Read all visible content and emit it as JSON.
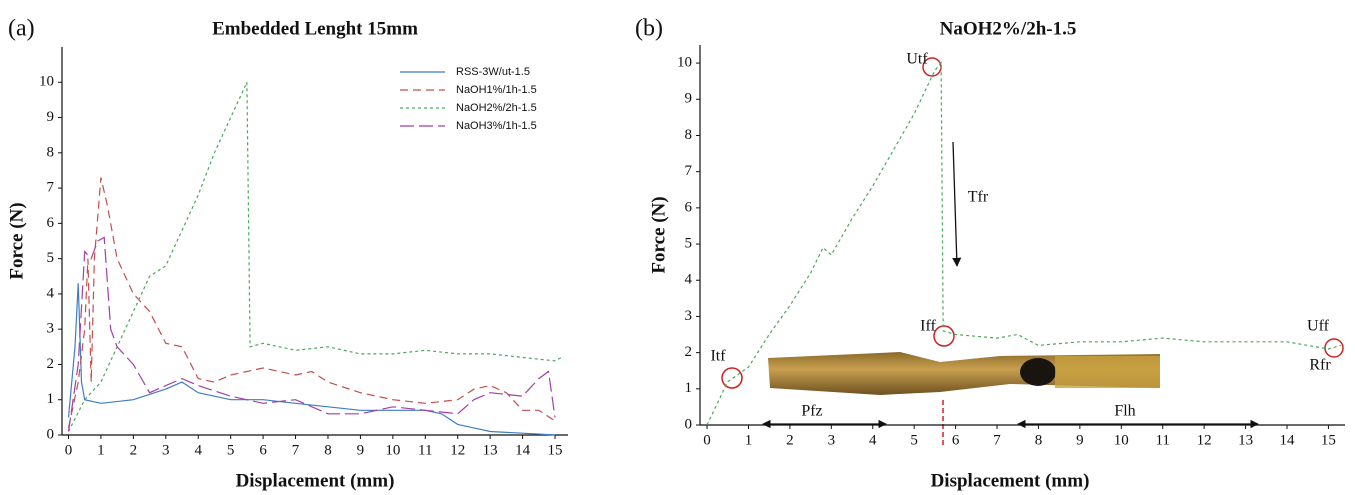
{
  "chart_data": [
    {
      "type": "line",
      "panel_label": "(a)",
      "title": "Embedded Lenght 15mm",
      "x_label": "Displacement (mm)",
      "y_label": "Force (N)",
      "xlim": [
        -0.2,
        15.4
      ],
      "ylim": [
        0,
        11
      ],
      "xticks": [
        0,
        1,
        2,
        3,
        4,
        5,
        6,
        7,
        8,
        9,
        10,
        11,
        12,
        13,
        14,
        15
      ],
      "yticks": [
        0,
        1,
        2,
        3,
        4,
        5,
        6,
        7,
        8,
        9,
        10
      ],
      "legend": "upper right",
      "series": [
        {
          "name": "RSS-3W/ut-1.5",
          "color": "#3f7cc4",
          "dash": "solid",
          "x": [
            0,
            0.2,
            0.3,
            0.4,
            0.5,
            1,
            2,
            3,
            3.5,
            4,
            5,
            6,
            7,
            8,
            9,
            10,
            11,
            11.5,
            12,
            12.5,
            13,
            14,
            15
          ],
          "values": [
            0.5,
            2.5,
            4.3,
            1.5,
            1.0,
            0.9,
            1.0,
            1.3,
            1.5,
            1.2,
            1.0,
            1.0,
            0.9,
            0.8,
            0.7,
            0.7,
            0.7,
            0.6,
            0.3,
            0.2,
            0.1,
            0.05,
            0
          ]
        },
        {
          "name": "NaOH1%/1h-1.5",
          "color": "#c0504d",
          "dash": "dashed",
          "x": [
            0,
            0.3,
            0.5,
            0.6,
            0.7,
            0.8,
            1.0,
            1.2,
            1.5,
            2,
            2.5,
            3,
            3.5,
            4,
            4.5,
            5,
            6,
            7,
            7.5,
            8,
            9,
            10,
            11,
            12,
            12.5,
            13,
            13.5,
            14,
            14.5,
            15
          ],
          "values": [
            0.2,
            1.5,
            3,
            5,
            1.5,
            5,
            7.3,
            6.5,
            5,
            4,
            3.5,
            2.6,
            2.5,
            1.6,
            1.5,
            1.7,
            1.9,
            1.7,
            1.8,
            1.5,
            1.2,
            1.0,
            0.9,
            1.0,
            1.3,
            1.4,
            1.2,
            0.7,
            0.7,
            0.4
          ]
        },
        {
          "name": "NaOH2%/2h-1.5",
          "color": "#4aa85a",
          "dash": "dotted",
          "x": [
            0,
            0.5,
            1,
            1.5,
            2,
            2.5,
            3,
            3.5,
            4,
            4.5,
            5,
            5.5,
            5.6,
            6,
            7,
            8,
            9,
            10,
            11,
            12,
            13,
            14,
            15,
            15.2
          ],
          "values": [
            0.1,
            1.0,
            1.5,
            2.5,
            3.5,
            4.5,
            4.8,
            5.8,
            6.8,
            8,
            9,
            10,
            2.5,
            2.6,
            2.4,
            2.5,
            2.3,
            2.3,
            2.4,
            2.3,
            2.3,
            2.2,
            2.1,
            2.2
          ]
        },
        {
          "name": "NaOH3%/1h-1.5",
          "color": "#a040a8",
          "dash": "long-dash",
          "x": [
            0,
            0.3,
            0.5,
            0.7,
            0.9,
            1.1,
            1.3,
            1.5,
            2,
            2.5,
            3,
            3.5,
            4,
            5,
            6,
            7,
            8,
            9,
            10,
            11,
            12,
            12.5,
            13,
            14,
            14.5,
            14.8,
            15
          ],
          "values": [
            0.1,
            2,
            5.2,
            5,
            5.5,
            5.6,
            3,
            2.5,
            2,
            1.2,
            1.4,
            1.6,
            1.4,
            1.1,
            0.9,
            1.0,
            0.6,
            0.6,
            0.8,
            0.7,
            0.6,
            1.0,
            1.2,
            1.1,
            1.6,
            1.8,
            0.5
          ]
        }
      ]
    },
    {
      "type": "line",
      "panel_label": "(b)",
      "title": "NaOH2%/2h-1.5",
      "x_label": "Displacement (mm)",
      "y_label": "Force (N)",
      "xlim": [
        -0.17,
        15.4
      ],
      "ylim": [
        0,
        10.5
      ],
      "xticks": [
        0,
        1,
        2,
        3,
        4,
        5,
        6,
        7,
        8,
        9,
        10,
        11,
        12,
        13,
        14,
        15
      ],
      "yticks": [
        0,
        1,
        2,
        3,
        4,
        5,
        6,
        7,
        8,
        9,
        10
      ],
      "annotations": [
        "Utf",
        "Tfr",
        "Iff",
        "Itf",
        "Uff",
        "Rfr",
        "Pfz",
        "Flh"
      ],
      "series": [
        {
          "color": "#4aa85a",
          "dash": "dotted",
          "x": [
            0,
            0.5,
            1,
            1.5,
            2,
            2.5,
            2.8,
            3,
            3.5,
            4,
            4.5,
            5,
            5.5,
            5.65,
            5.7,
            6,
            7,
            7.5,
            8,
            9,
            10,
            11,
            12,
            13,
            14,
            15,
            15.3
          ],
          "values": [
            0,
            1.2,
            1.6,
            2.5,
            3.3,
            4.2,
            4.9,
            4.7,
            5.7,
            6.6,
            7.6,
            8.6,
            9.8,
            10,
            2.6,
            2.5,
            2.4,
            2.5,
            2.2,
            2.3,
            2.3,
            2.4,
            2.3,
            2.3,
            2.3,
            2.1,
            2.2
          ]
        }
      ]
    }
  ]
}
